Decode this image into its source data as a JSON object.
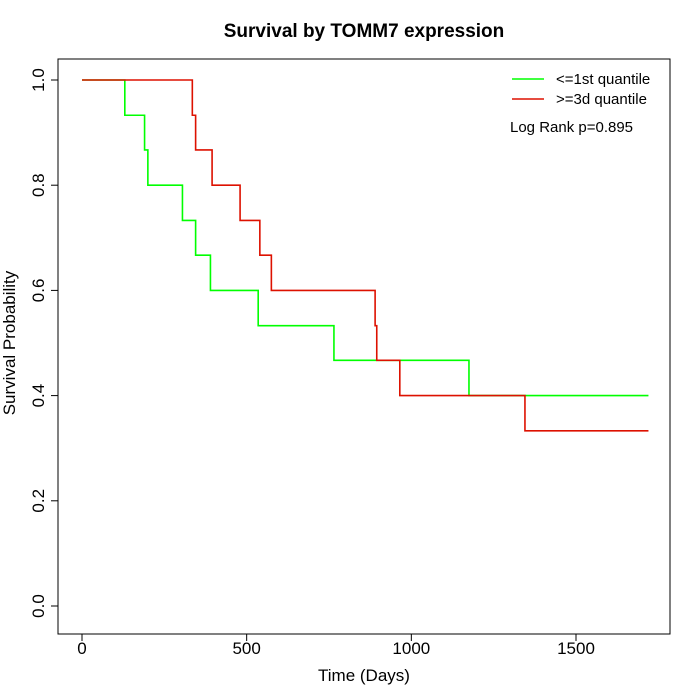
{
  "chart_data": {
    "type": "line",
    "step": true,
    "title": "Survival by TOMM7 expression",
    "xlabel": "Time (Days)",
    "ylabel": "Survival Probability",
    "xlim": [
      0,
      1750
    ],
    "ylim": [
      0,
      1.0
    ],
    "x_ticks": [
      0,
      500,
      1000,
      1500
    ],
    "x_tick_labels": [
      "0",
      "500",
      "1000",
      "1500"
    ],
    "y_ticks": [
      0,
      0.2,
      0.4,
      0.6,
      0.8,
      1.0
    ],
    "y_tick_labels": [
      "0.0",
      "0.2",
      "0.4",
      "0.6",
      "0.8",
      "1.0"
    ],
    "grid": false,
    "legend_position": "top-right",
    "annotation": "Log Rank p=0.895",
    "series": [
      {
        "name": "<=1st quantile",
        "color": "#00ff00",
        "x": [
          0,
          130,
          190,
          200,
          305,
          345,
          390,
          535,
          765,
          1175,
          1720
        ],
        "y": [
          1.0,
          0.933,
          0.867,
          0.8,
          0.733,
          0.667,
          0.6,
          0.533,
          0.467,
          0.4,
          0.4
        ]
      },
      {
        "name": ">=3d quantile",
        "color": "#dd1100",
        "x": [
          0,
          335,
          345,
          395,
          480,
          540,
          575,
          890,
          895,
          965,
          1345,
          1720
        ],
        "y": [
          1.0,
          0.933,
          0.867,
          0.8,
          0.733,
          0.667,
          0.6,
          0.533,
          0.467,
          0.4,
          0.333,
          0.333
        ]
      }
    ]
  }
}
